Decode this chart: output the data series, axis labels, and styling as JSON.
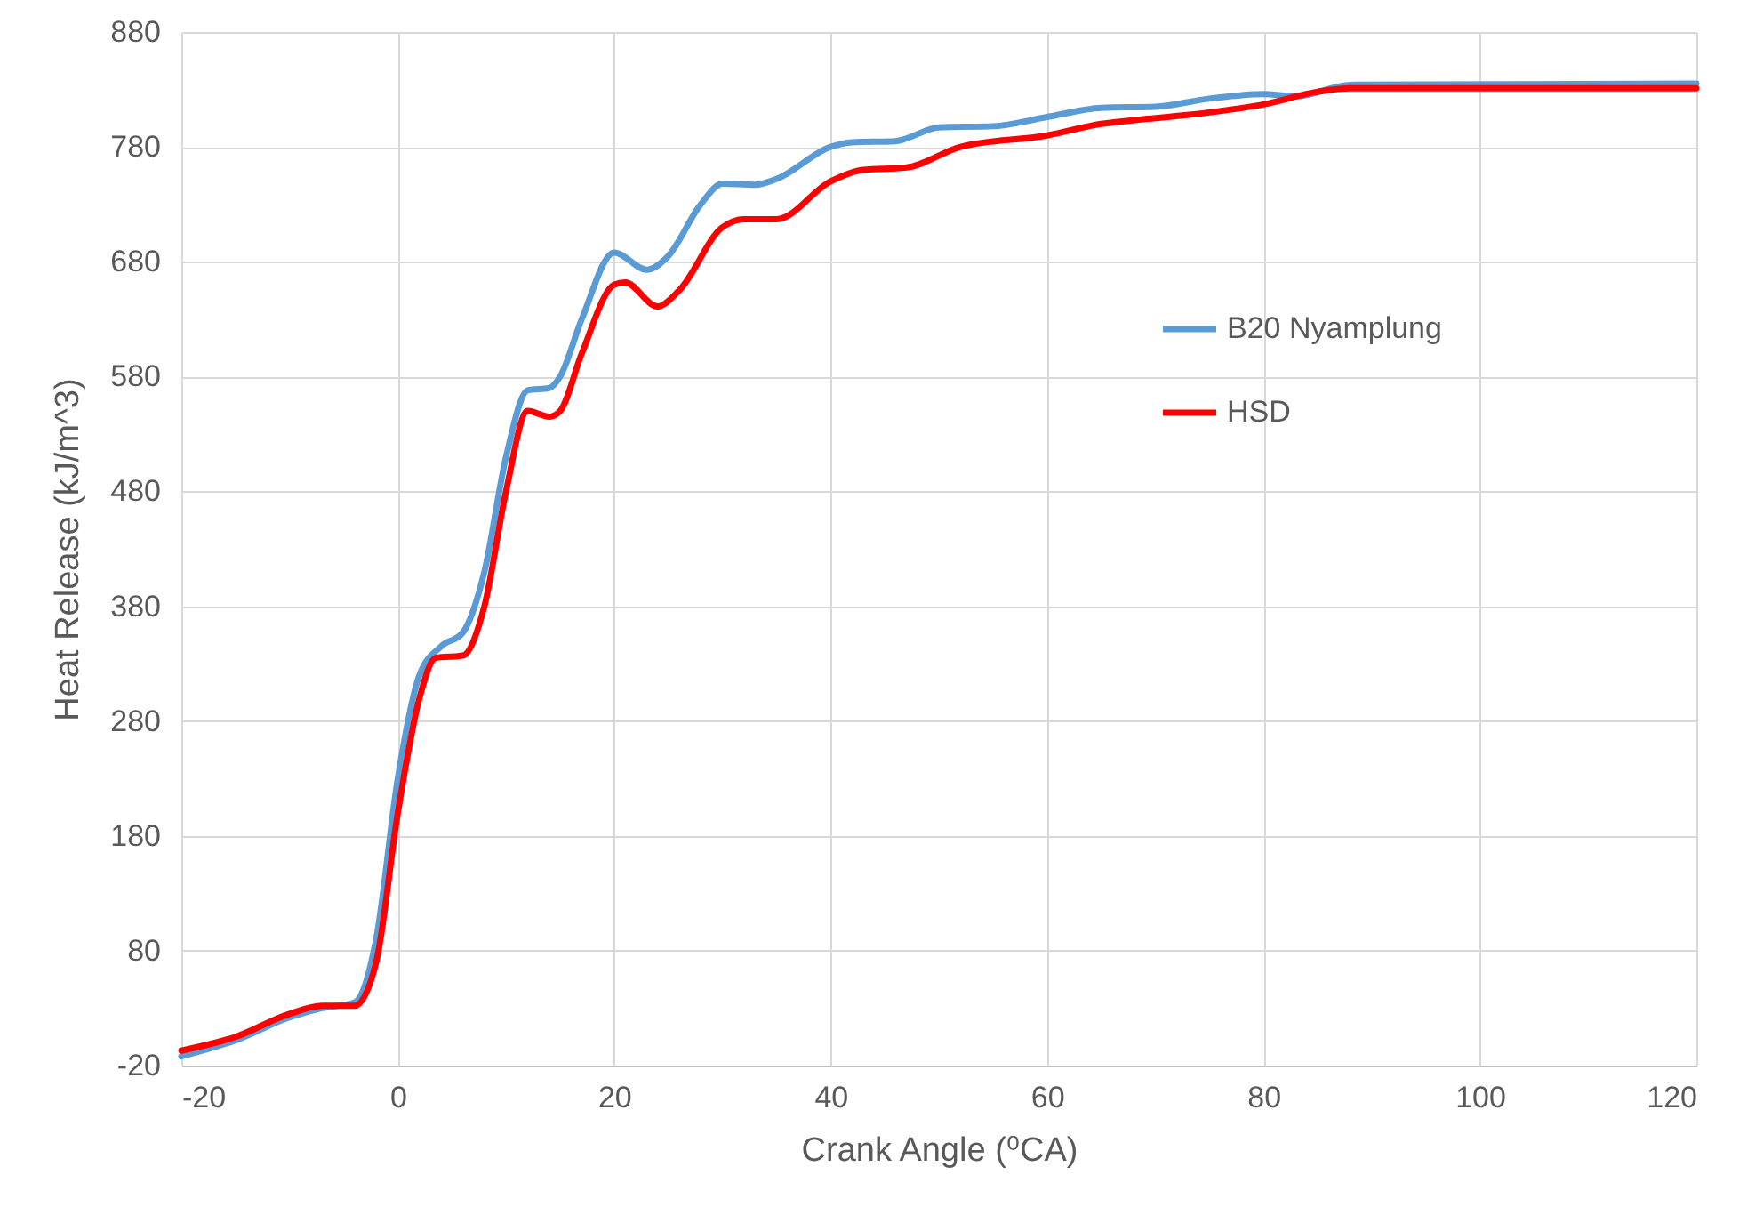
{
  "chart_data": {
    "type": "line",
    "xlabel": "Crank Angle (⁰CA)",
    "ylabel": "Heat Release (kJ/m^3)",
    "xlim": [
      -20,
      120
    ],
    "xticks": [
      -20,
      0,
      20,
      40,
      60,
      80,
      100,
      120
    ],
    "ylim": [
      -20,
      880
    ],
    "yticks": [
      -20,
      80,
      180,
      280,
      380,
      480,
      580,
      680,
      780,
      880
    ],
    "grid": true,
    "legend": "right",
    "marker": "none",
    "line_style": "solid",
    "series": [
      {
        "name": "B20 Nyamplung",
        "color": "#5b9bd5",
        "x": [
          -20,
          -15,
          -10,
          -7,
          -4,
          -2,
          0,
          2,
          4,
          6,
          8,
          10,
          12,
          14,
          15,
          17,
          20,
          23,
          25,
          28,
          30,
          33,
          35,
          40,
          42,
          46,
          50,
          55,
          60,
          65,
          70,
          75,
          80,
          83,
          88,
          120
        ],
        "values": [
          -12,
          2,
          22,
          30,
          35,
          90,
          230,
          320,
          345,
          357,
          410,
          510,
          568,
          570,
          580,
          630,
          688,
          673,
          685,
          730,
          748,
          747,
          752,
          780,
          784,
          785,
          797,
          798,
          806,
          814,
          815,
          822,
          826,
          824,
          834,
          835
        ]
      },
      {
        "name": "HSD",
        "color": "#ff0000",
        "x": [
          -20,
          -15,
          -10,
          -7,
          -4,
          -2,
          0,
          2,
          3.5,
          6,
          8,
          10,
          12,
          14,
          15,
          17,
          20,
          21,
          24,
          26,
          30,
          32,
          35,
          40,
          43,
          47,
          52,
          60,
          65,
          70,
          75,
          80,
          85,
          88,
          120
        ],
        "values": [
          -7,
          5,
          25,
          32,
          32,
          70,
          200,
          300,
          335,
          337,
          380,
          480,
          550,
          545,
          550,
          600,
          660,
          662,
          641,
          655,
          710,
          717,
          717,
          750,
          760,
          762,
          780,
          790,
          800,
          805,
          810,
          817,
          828,
          831,
          831
        ]
      }
    ]
  }
}
